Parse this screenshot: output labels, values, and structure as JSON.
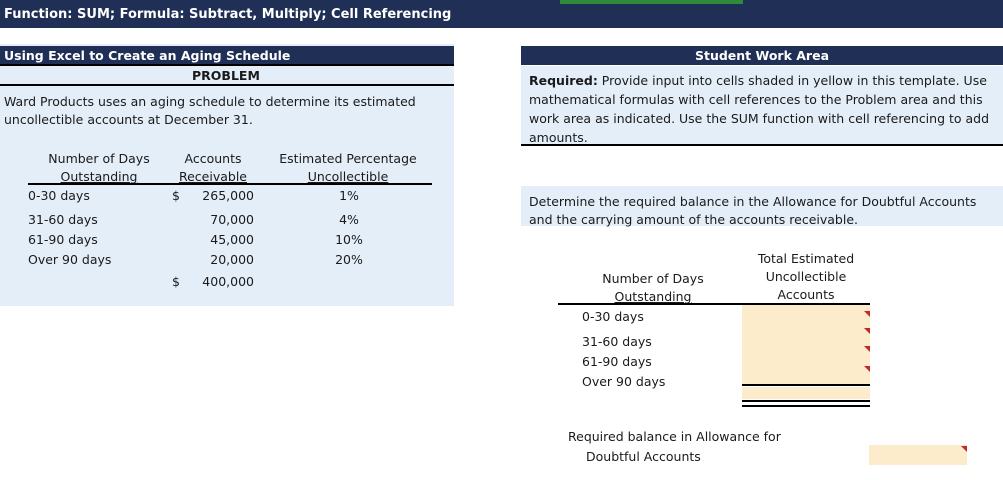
{
  "header": {
    "title": "Function: SUM; Formula: Subtract, Multiply; Cell Referencing"
  },
  "problem": {
    "title": "Using Excel to Create an Aging Schedule",
    "label": "PROBLEM",
    "description_line1": "Ward Products uses an aging schedule to determine its estimated",
    "description_line2": "uncollectible accounts at December 31.",
    "headers": {
      "days_l1": "Number of Days",
      "days_l2": "Outstanding",
      "ar_l1": "Accounts",
      "ar_l2": "Receivable",
      "pct_l1": "Estimated Percentage",
      "pct_l2": "Uncollectible"
    },
    "rows": [
      {
        "days": "0-30 days",
        "currency": "$",
        "amount": "265,000",
        "pct": "1%"
      },
      {
        "days": "31-60 days",
        "currency": "",
        "amount": "70,000",
        "pct": "4%"
      },
      {
        "days": "61-90 days",
        "currency": "",
        "amount": "45,000",
        "pct": "10%"
      },
      {
        "days": "Over 90 days",
        "currency": "",
        "amount": "20,000",
        "pct": "20%"
      }
    ],
    "total": {
      "currency": "$",
      "amount": "400,000"
    }
  },
  "work": {
    "title": "Student Work Area",
    "required_bold": "Required:",
    "required_line1": " Provide input into cells shaded in yellow in this template. Use",
    "required_line2": "mathematical formulas with cell references to the Problem area and this",
    "required_line3": "work area as indicated. Use the SUM function with cell referencing to add",
    "required_line4": "amounts.",
    "determine_line1": "Determine the required balance in the Allowance for Doubtful Accounts",
    "determine_line2": "and the carrying amount of the accounts receivable.",
    "headers": {
      "days_l1": "Number of Days",
      "days_l2": "Outstanding",
      "tot_l1": "Total Estimated",
      "tot_l2": "Uncollectible",
      "tot_l3": "Accounts"
    },
    "rows": [
      "0-30 days",
      "31-60 days",
      "61-90 days",
      "Over 90 days"
    ],
    "allowance_l1": "Required balance in Allowance for",
    "allowance_l2": "Doubtful Accounts"
  },
  "colors": {
    "navy": "#1f2f55",
    "panel": "#e4eef9",
    "input_yellow": "#fdeccb",
    "flag_red": "#c62828",
    "tab_green": "#2e8b3a"
  }
}
